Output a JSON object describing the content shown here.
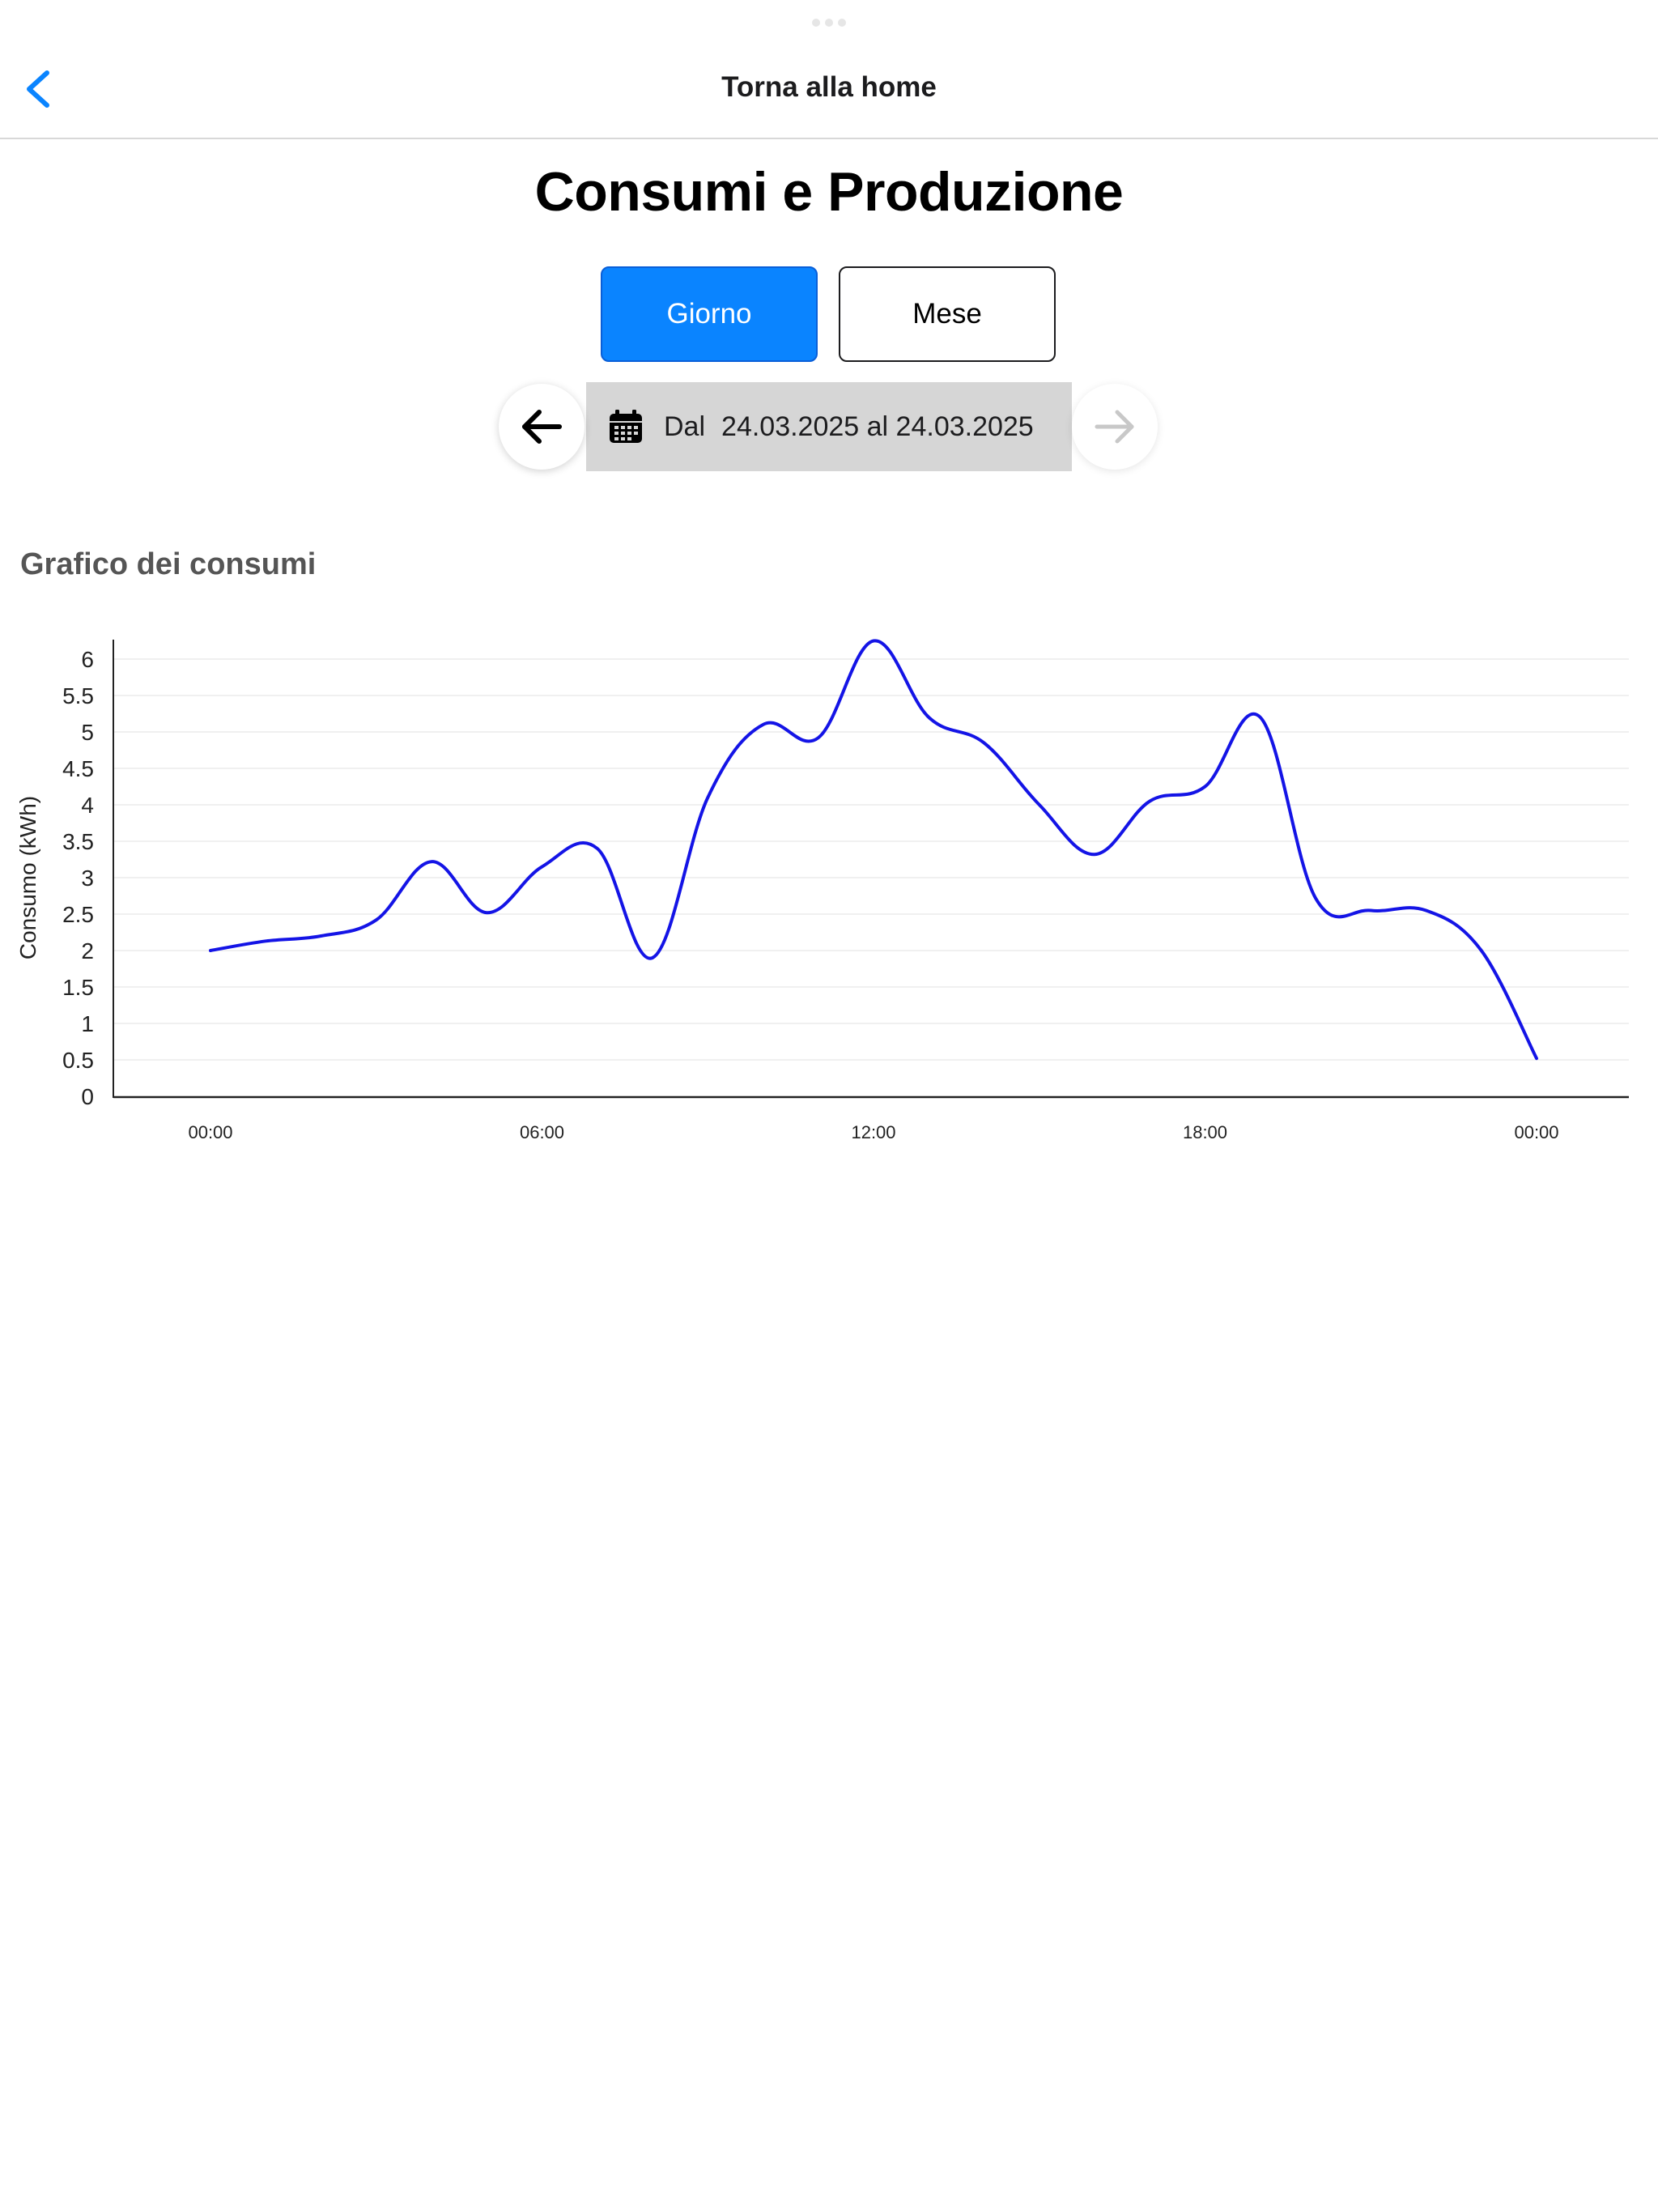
{
  "nav": {
    "title": "Torna alla home",
    "back_icon": "chevron-left-icon"
  },
  "page": {
    "title": "Consumi e Produzione"
  },
  "period_toggle": {
    "options": [
      "Giorno",
      "Mese"
    ],
    "selected": "Giorno"
  },
  "date_selector": {
    "prefix": "Dal",
    "range": "24.03.2025 al 24.03.2025",
    "prev_icon": "arrow-left-icon",
    "next_icon": "arrow-right-icon",
    "calendar_icon": "calendar-icon",
    "next_enabled": false
  },
  "section": {
    "title": "Grafico dei consumi"
  },
  "colors": {
    "accent": "#0a84ff",
    "line": "#1414e6",
    "date_pill": "#d6d6d6"
  },
  "chart_data": {
    "type": "line",
    "title": "",
    "ylabel": "Consumo (kWh)",
    "xlabel": "",
    "ylim": [
      0,
      6
    ],
    "yticks": [
      "0",
      "0.5",
      "1",
      "1.5",
      "2",
      "2.5",
      "3",
      "3.5",
      "4",
      "4.5",
      "5",
      "5.5",
      "6"
    ],
    "xticks": [
      "00:00",
      "06:00",
      "12:00",
      "18:00",
      "00:00"
    ],
    "x_hours": [
      0,
      1,
      2,
      3,
      4,
      5,
      6,
      7,
      8,
      9,
      10,
      11,
      12,
      13,
      14,
      15,
      16,
      17,
      18,
      19,
      20,
      21,
      22,
      23,
      24
    ],
    "series": [
      {
        "values": [
          2.0,
          2.13,
          2.2,
          2.42,
          3.22,
          2.52,
          3.15,
          3.4,
          1.9,
          4.1,
          5.1,
          4.92,
          6.25,
          5.2,
          4.85,
          4.0,
          3.32,
          4.05,
          4.25,
          5.2,
          2.72,
          2.55,
          2.55,
          2.0,
          0.52
        ]
      }
    ],
    "grid": true,
    "legend": "none"
  }
}
